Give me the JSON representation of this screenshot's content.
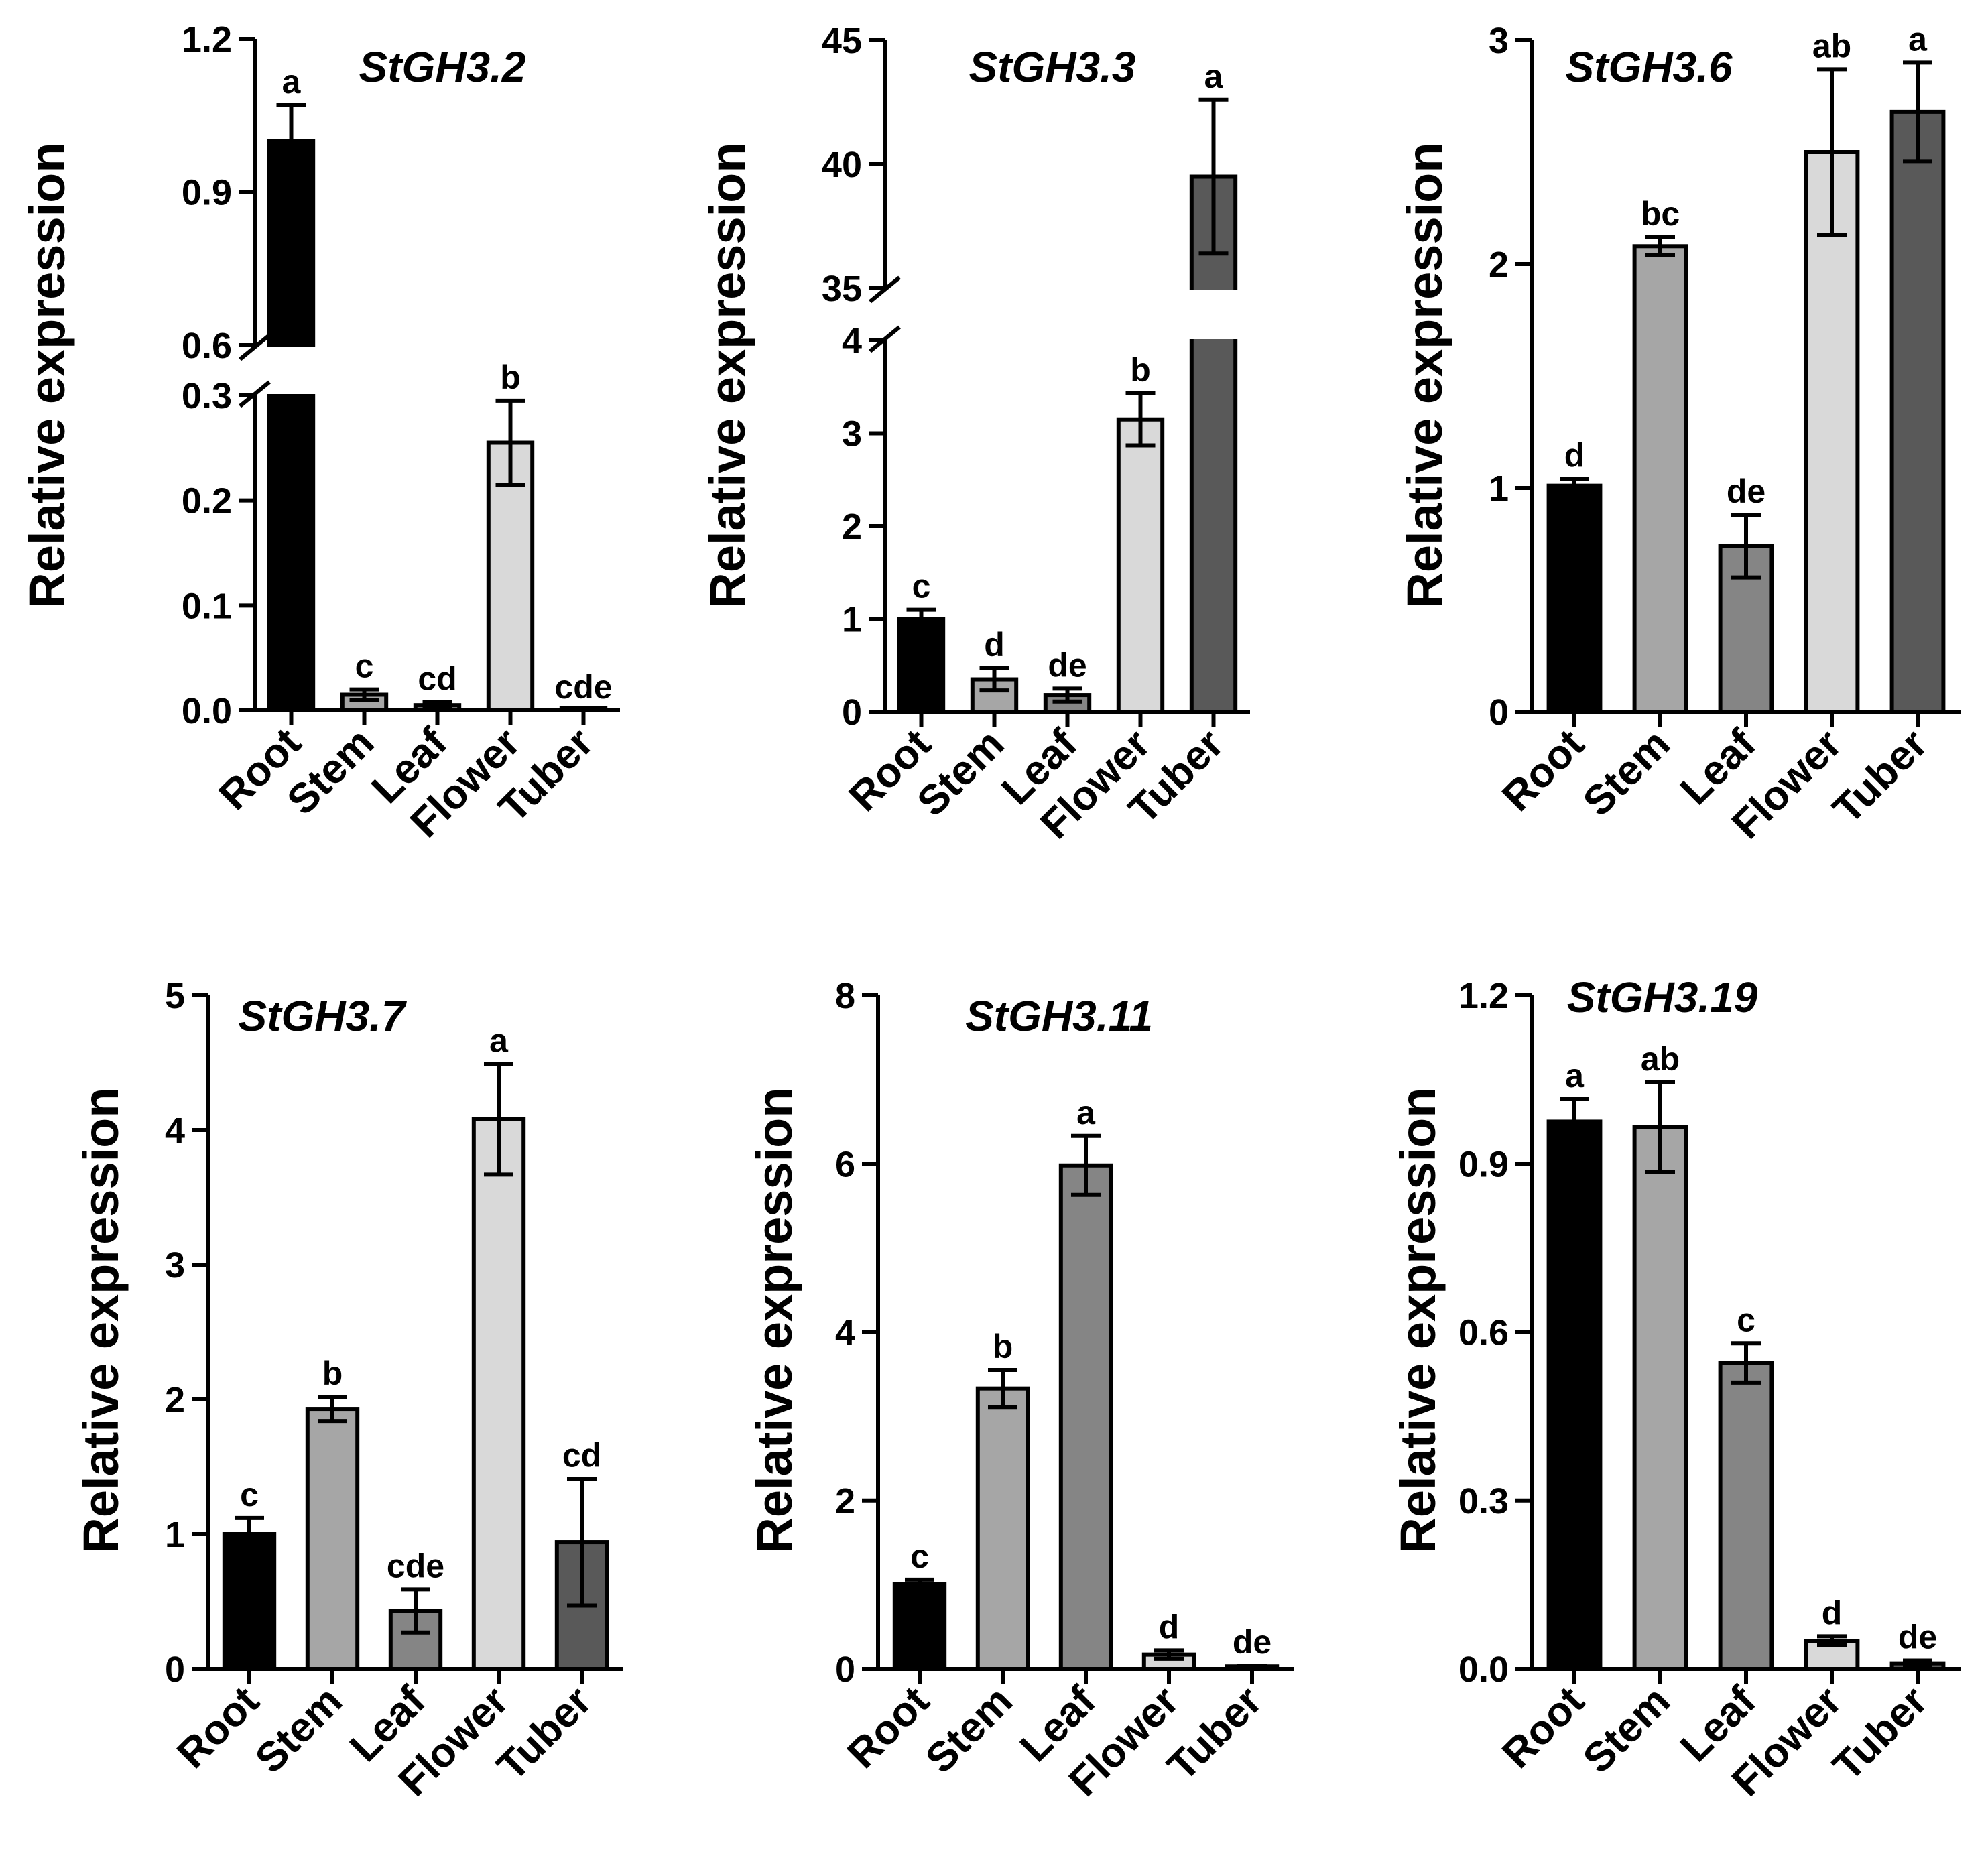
{
  "colors": {
    "Root": "#000000",
    "Stem": "#a6a6a6",
    "Leaf": "#858585",
    "Flower": "#d9d9d9",
    "Tuber": "#595959",
    "axis": "#000000"
  },
  "chart_data": [
    {
      "type": "bar",
      "title": "StGH3.2",
      "ylabel": "Relative expression",
      "xlabel": "",
      "categories": [
        "Root",
        "Stem",
        "Leaf",
        "Flower",
        "Tuber"
      ],
      "values": [
        1.0,
        0.015,
        0.005,
        0.255,
        0.0
      ],
      "errors": [
        0.07,
        0.005,
        0.003,
        0.04,
        0.0
      ],
      "significance": [
        "a",
        "c",
        "cd",
        "b",
        "cde"
      ],
      "axis_break": {
        "lower_range": [
          0,
          0.3
        ],
        "upper_range": [
          0.6,
          1.2
        ]
      },
      "yticks": [
        0.0,
        0.1,
        0.2,
        0.3,
        0.6,
        0.9,
        1.2
      ],
      "ytick_labels": [
        "0.0",
        "0.1",
        "0.2",
        "0.3",
        "0.6",
        "0.9",
        "1.2"
      ]
    },
    {
      "type": "bar",
      "title": "StGH3.3",
      "ylabel": "Relative expression",
      "xlabel": "",
      "categories": [
        "Root",
        "Stem",
        "Leaf",
        "Flower",
        "Tuber"
      ],
      "values": [
        1.0,
        0.35,
        0.18,
        3.15,
        39.5
      ],
      "errors": [
        0.1,
        0.12,
        0.07,
        0.28,
        3.1
      ],
      "significance": [
        "c",
        "d",
        "de",
        "b",
        "a"
      ],
      "axis_break": {
        "lower_range": [
          0,
          4
        ],
        "upper_range": [
          35,
          45
        ]
      },
      "yticks": [
        0,
        1,
        2,
        3,
        4,
        35,
        40,
        45
      ],
      "ytick_labels": [
        "0",
        "1",
        "2",
        "3",
        "4",
        "35",
        "40",
        "45"
      ]
    },
    {
      "type": "bar",
      "title": "StGH3.6",
      "ylabel": "Relative expression",
      "xlabel": "",
      "categories": [
        "Root",
        "Stem",
        "Leaf",
        "Flower",
        "Tuber"
      ],
      "values": [
        1.01,
        2.08,
        0.74,
        2.5,
        2.68
      ],
      "errors": [
        0.03,
        0.04,
        0.14,
        0.37,
        0.22
      ],
      "significance": [
        "d",
        "bc",
        "de",
        "ab",
        "a"
      ],
      "ylim": [
        0,
        3
      ],
      "yticks": [
        0,
        1,
        2,
        3
      ],
      "ytick_labels": [
        "0",
        "1",
        "2",
        "3"
      ]
    },
    {
      "type": "bar",
      "title": "StGH3.7",
      "ylabel": "Relative expression",
      "xlabel": "",
      "categories": [
        "Root",
        "Stem",
        "Leaf",
        "Flower",
        "Tuber"
      ],
      "values": [
        1.0,
        1.93,
        0.43,
        4.08,
        0.94
      ],
      "errors": [
        0.12,
        0.09,
        0.16,
        0.41,
        0.47
      ],
      "significance": [
        "c",
        "b",
        "cde",
        "a",
        "cd"
      ],
      "ylim": [
        0,
        5
      ],
      "yticks": [
        0,
        1,
        2,
        3,
        4,
        5
      ],
      "ytick_labels": [
        "0",
        "1",
        "2",
        "3",
        "4",
        "5"
      ]
    },
    {
      "type": "bar",
      "title": "StGH3.11",
      "ylabel": "Relative expression",
      "xlabel": "",
      "categories": [
        "Root",
        "Stem",
        "Leaf",
        "Flower",
        "Tuber"
      ],
      "values": [
        1.01,
        3.33,
        5.98,
        0.17,
        0.03
      ],
      "errors": [
        0.05,
        0.22,
        0.35,
        0.05,
        0.01
      ],
      "significance": [
        "c",
        "b",
        "a",
        "d",
        "de"
      ],
      "ylim": [
        0,
        8
      ],
      "yticks": [
        0,
        2,
        4,
        6,
        8
      ],
      "ytick_labels": [
        "0",
        "2",
        "4",
        "6",
        "8"
      ]
    },
    {
      "type": "bar",
      "title": "StGH3.19",
      "ylabel": "Relative expression",
      "xlabel": "",
      "categories": [
        "Root",
        "Stem",
        "Leaf",
        "Flower",
        "Tuber"
      ],
      "values": [
        0.975,
        0.965,
        0.545,
        0.05,
        0.01
      ],
      "errors": [
        0.04,
        0.08,
        0.035,
        0.008,
        0.005
      ],
      "significance": [
        "a",
        "ab",
        "c",
        "d",
        "de"
      ],
      "ylim": [
        0,
        1.2
      ],
      "yticks": [
        0.0,
        0.3,
        0.6,
        0.9,
        1.2
      ],
      "ytick_labels": [
        "0.0",
        "0.3",
        "0.6",
        "0.9",
        "1.2"
      ]
    }
  ]
}
